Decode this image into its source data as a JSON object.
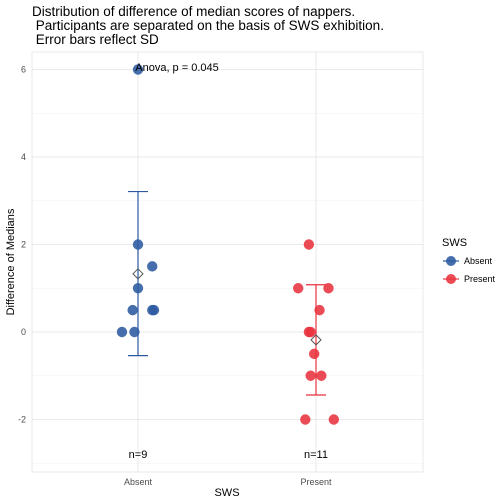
{
  "chart_data": {
    "type": "scatter",
    "title": [
      "Distribution of difference of median scores of nappers.",
      " Participants are separated on the basis of SWS exhibition.",
      " Error bars reflect SD"
    ],
    "xlabel": "SWS",
    "ylabel": "Difference of Medians",
    "categories": [
      "Absent",
      "Present"
    ],
    "ylim": [
      -3.2,
      6.4
    ],
    "yticks": [
      -2,
      0,
      2,
      4,
      6
    ],
    "grid": true,
    "legend": {
      "title": "SWS",
      "placement": "right"
    },
    "series": [
      {
        "name": "Absent",
        "color": "#2c5aa0",
        "points": [
          {
            "x": "Absent",
            "y": 6.0,
            "jitter": 0.0
          },
          {
            "x": "Absent",
            "y": 2.0,
            "jitter": 0.0
          },
          {
            "x": "Absent",
            "y": 1.5,
            "jitter": 0.08
          },
          {
            "x": "Absent",
            "y": 1.0,
            "jitter": 0.0
          },
          {
            "x": "Absent",
            "y": 0.5,
            "jitter": -0.03
          },
          {
            "x": "Absent",
            "y": 0.5,
            "jitter": 0.08
          },
          {
            "x": "Absent",
            "y": 0.5,
            "jitter": 0.09
          },
          {
            "x": "Absent",
            "y": 0.0,
            "jitter": -0.09
          },
          {
            "x": "Absent",
            "y": 0.0,
            "jitter": -0.02
          }
        ],
        "mean": 1.33,
        "sd_lower": -0.54,
        "sd_upper": 3.21
      },
      {
        "name": "Present",
        "color": "#e8323c",
        "points": [
          {
            "x": "Present",
            "y": 2.0,
            "jitter": -0.04
          },
          {
            "x": "Present",
            "y": 1.0,
            "jitter": -0.1
          },
          {
            "x": "Present",
            "y": 1.0,
            "jitter": 0.07
          },
          {
            "x": "Present",
            "y": 0.5,
            "jitter": 0.02
          },
          {
            "x": "Present",
            "y": 0.0,
            "jitter": -0.04
          },
          {
            "x": "Present",
            "y": 0.0,
            "jitter": -0.03
          },
          {
            "x": "Present",
            "y": -0.5,
            "jitter": -0.01
          },
          {
            "x": "Present",
            "y": -1.0,
            "jitter": -0.03
          },
          {
            "x": "Present",
            "y": -1.0,
            "jitter": 0.03
          },
          {
            "x": "Present",
            "y": -2.0,
            "jitter": -0.06
          },
          {
            "x": "Present",
            "y": -2.0,
            "jitter": 0.1
          }
        ],
        "mean": -0.18,
        "sd_lower": -1.44,
        "sd_upper": 1.08
      }
    ],
    "annotations": {
      "test": "Anova, p = 0.045",
      "counts": [
        "n=9",
        "n=11"
      ]
    }
  }
}
